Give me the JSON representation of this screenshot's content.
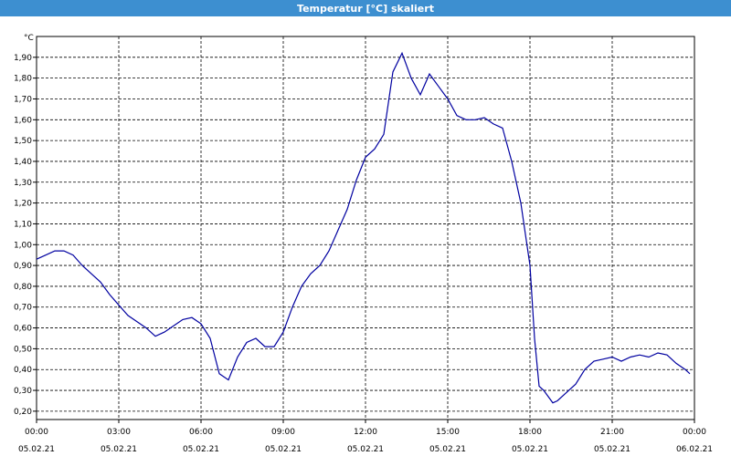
{
  "window": {
    "title": "Temperatur [°C] skaliert"
  },
  "colors": {
    "titlebar": "#3d8fd0",
    "line": "#0000a0",
    "grid": "#000000"
  },
  "chart_data": {
    "type": "line",
    "title": "Temperatur [°C] skaliert",
    "ylabel": "°C",
    "xlabel": "",
    "grid": true,
    "ylim": [
      0.16,
      2.0
    ],
    "xlim_hours": [
      0,
      24
    ],
    "yticks": [
      "0,20",
      "0,30",
      "0,40",
      "0,50",
      "0,60",
      "0,70",
      "0,80",
      "0,90",
      "1,00",
      "1,10",
      "1,20",
      "1,30",
      "1,40",
      "1,50",
      "1,60",
      "1,70",
      "1,80",
      "1,90"
    ],
    "xticks": [
      {
        "time": "00:00",
        "date": "05.02.21"
      },
      {
        "time": "03:00",
        "date": "05.02.21"
      },
      {
        "time": "06:00",
        "date": "05.02.21"
      },
      {
        "time": "09:00",
        "date": "05.02.21"
      },
      {
        "time": "12:00",
        "date": "05.02.21"
      },
      {
        "time": "15:00",
        "date": "05.02.21"
      },
      {
        "time": "18:00",
        "date": "05.02.21"
      },
      {
        "time": "21:00",
        "date": "05.02.21"
      },
      {
        "time": "00:00",
        "date": "06.02.21"
      }
    ],
    "series": [
      {
        "x": [
          "00:00",
          "00:20",
          "00:40",
          "01:00",
          "01:20",
          "01:40",
          "02:00",
          "02:20",
          "02:40",
          "03:00",
          "03:20",
          "03:40",
          "04:00",
          "04:20",
          "04:40",
          "05:00",
          "05:20",
          "05:40",
          "06:00",
          "06:20",
          "06:40",
          "07:00",
          "07:20",
          "07:40",
          "08:00",
          "08:20",
          "08:40",
          "09:00",
          "09:20",
          "09:40",
          "10:00",
          "10:20",
          "10:40",
          "11:00",
          "11:20",
          "11:40",
          "12:00",
          "12:20",
          "12:40",
          "13:00",
          "13:20",
          "13:40",
          "14:00",
          "14:20",
          "14:40",
          "15:00",
          "15:20",
          "15:40",
          "16:00",
          "16:20",
          "16:40",
          "17:00",
          "17:20",
          "17:40",
          "18:00",
          "18:10",
          "18:20",
          "18:30",
          "18:40",
          "18:50",
          "19:00",
          "19:20",
          "19:40",
          "20:00",
          "20:20",
          "20:40",
          "21:00",
          "21:20",
          "21:40",
          "22:00",
          "22:20",
          "22:40",
          "23:00",
          "23:20",
          "23:40",
          "23:50"
        ],
        "y": [
          0.93,
          0.95,
          0.97,
          0.97,
          0.95,
          0.9,
          0.86,
          0.82,
          0.76,
          0.71,
          0.66,
          0.63,
          0.6,
          0.56,
          0.58,
          0.61,
          0.64,
          0.65,
          0.62,
          0.55,
          0.38,
          0.35,
          0.46,
          0.53,
          0.55,
          0.51,
          0.51,
          0.58,
          0.7,
          0.8,
          0.86,
          0.9,
          0.97,
          1.07,
          1.17,
          1.31,
          1.42,
          1.46,
          1.53,
          1.83,
          1.92,
          1.8,
          1.72,
          1.82,
          1.76,
          1.7,
          1.62,
          1.6,
          1.6,
          1.61,
          1.58,
          1.56,
          1.4,
          1.2,
          0.9,
          0.55,
          0.32,
          0.3,
          0.27,
          0.24,
          0.25,
          0.29,
          0.33,
          0.4,
          0.44,
          0.45,
          0.46,
          0.44,
          0.46,
          0.47,
          0.46,
          0.48,
          0.47,
          0.43,
          0.4,
          0.38
        ]
      }
    ]
  }
}
